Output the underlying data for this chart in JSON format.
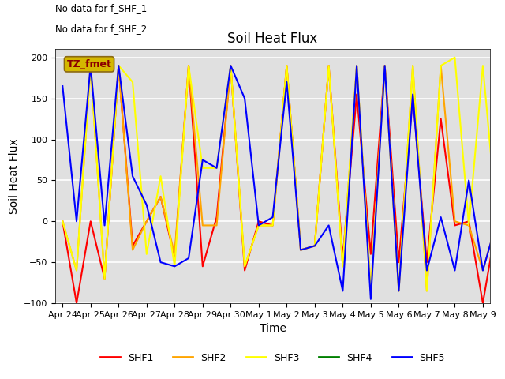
{
  "title": "Soil Heat Flux",
  "xlabel": "Time",
  "ylabel": "Soil Heat Flux",
  "ylim": [
    -100,
    210
  ],
  "yticks": [
    -100,
    -50,
    0,
    50,
    100,
    150,
    200
  ],
  "annotation_lines": [
    "No data for f_SHF_1",
    "No data for f_SHF_2"
  ],
  "legend_box_text": "TZ_fmet",
  "legend_box_face": "#d4b800",
  "legend_box_edge": "#8B6914",
  "legend_box_text_color": "#8B0000",
  "series": {
    "SHF1": {
      "color": "red",
      "x": [
        0,
        1,
        2,
        3,
        4,
        5,
        6,
        7,
        8,
        9,
        10,
        11,
        12,
        13,
        14,
        15,
        16,
        17,
        18,
        19,
        20,
        21,
        22,
        23,
        24,
        25,
        26,
        27,
        28,
        29,
        30,
        31
      ],
      "y": [
        0,
        -100,
        0,
        -70,
        190,
        -30,
        0,
        30,
        -45,
        190,
        -55,
        5,
        190,
        -60,
        0,
        -5,
        190,
        -35,
        -30,
        190,
        -45,
        155,
        -40,
        190,
        -50,
        153,
        -50,
        125,
        -5,
        0,
        -100,
        0
      ]
    },
    "SHF2": {
      "color": "#FFA500",
      "x": [
        0,
        1,
        2,
        3,
        4,
        5,
        6,
        7,
        8,
        9,
        10,
        11,
        12,
        13,
        14,
        15,
        16,
        17,
        18,
        19,
        20,
        21,
        22,
        23,
        24,
        25,
        26,
        27,
        28,
        29,
        30,
        31
      ],
      "y": [
        0,
        -60,
        190,
        -70,
        190,
        -35,
        0,
        30,
        -40,
        190,
        -5,
        -5,
        190,
        -55,
        -5,
        -5,
        190,
        -35,
        -30,
        190,
        -55,
        190,
        -85,
        190,
        -85,
        190,
        -85,
        190,
        0,
        -5,
        -60,
        0
      ]
    },
    "SHF3": {
      "color": "yellow",
      "x": [
        0,
        1,
        2,
        3,
        4,
        5,
        6,
        7,
        8,
        9,
        10,
        11,
        12,
        13,
        14,
        15,
        16,
        17,
        18,
        19,
        20,
        21,
        22,
        23,
        24,
        25,
        26,
        27,
        28,
        29,
        30,
        31
      ],
      "y": [
        0,
        -60,
        190,
        -70,
        190,
        170,
        -40,
        55,
        -55,
        190,
        65,
        65,
        190,
        -55,
        -5,
        -5,
        190,
        -35,
        -30,
        190,
        -55,
        190,
        -85,
        190,
        -85,
        190,
        -85,
        190,
        200,
        -5,
        190,
        0
      ]
    },
    "SHF4": {
      "color": "green",
      "x": [],
      "y": []
    },
    "SHF5": {
      "color": "blue",
      "x": [
        0,
        1,
        2,
        3,
        4,
        5,
        6,
        7,
        8,
        9,
        10,
        11,
        12,
        13,
        14,
        15,
        16,
        17,
        18,
        19,
        20,
        21,
        22,
        23,
        24,
        25,
        26,
        27,
        28,
        29,
        30,
        31
      ],
      "y": [
        165,
        0,
        190,
        -5,
        190,
        55,
        20,
        -50,
        -55,
        -45,
        75,
        65,
        190,
        150,
        -5,
        5,
        170,
        -35,
        -30,
        -5,
        -85,
        190,
        -95,
        190,
        -85,
        155,
        -60,
        5,
        -60,
        50,
        -60,
        0
      ]
    }
  },
  "xtick_labels": [
    "Apr 24",
    "Apr 25",
    "Apr 26",
    "Apr 27",
    "Apr 28",
    "Apr 29",
    "Apr 30",
    "May 1",
    "May 2",
    "May 3",
    "May 4",
    "May 5",
    "May 6",
    "May 7",
    "May 8",
    "May 9"
  ],
  "xtick_positions": [
    0,
    2,
    4,
    6,
    8,
    10,
    12,
    14,
    16,
    18,
    20,
    22,
    24,
    26,
    28,
    30
  ],
  "xlim": [
    -0.5,
    30.5
  ],
  "grid_color": "white",
  "plot_bg": "#e0e0e0",
  "fig_bg": "white",
  "linewidth": 1.5,
  "title_fontsize": 12,
  "label_fontsize": 10,
  "tick_fontsize": 8,
  "legend_fontsize": 9
}
